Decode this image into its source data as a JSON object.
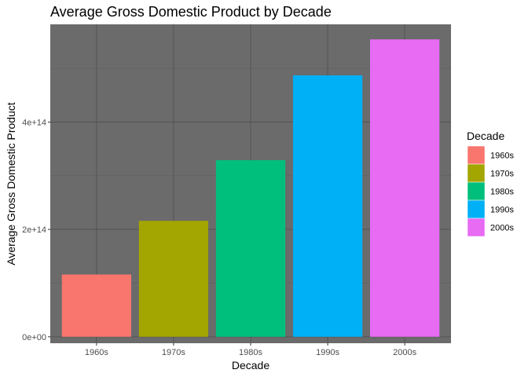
{
  "chart_data": {
    "type": "bar",
    "title": "Average Gross Domestic Product by Decade",
    "xlabel": "Decade",
    "ylabel": "Average Gross Domestic Product",
    "categories": [
      "1960s",
      "1970s",
      "1980s",
      "1990s",
      "2000s"
    ],
    "values": [
      116000000000000.0,
      216000000000000.0,
      329000000000000.0,
      487000000000000.0,
      554000000000000.0
    ],
    "colors": [
      "#F8766D",
      "#A3A500",
      "#00BF7D",
      "#00B0F6",
      "#E76BF3"
    ],
    "ylim": [
      -12000000000000.0,
      582000000000000.0
    ],
    "y_ticks": [
      0,
      200000000000000.0,
      400000000000000.0
    ],
    "y_tick_labels": [
      "0e+00",
      "2e+14",
      "4e+14"
    ],
    "grid": true,
    "panel_background": "#6b6b6b",
    "legend": {
      "title": "Decade",
      "position": "right",
      "items": [
        "1960s",
        "1970s",
        "1980s",
        "1990s",
        "2000s"
      ]
    }
  }
}
